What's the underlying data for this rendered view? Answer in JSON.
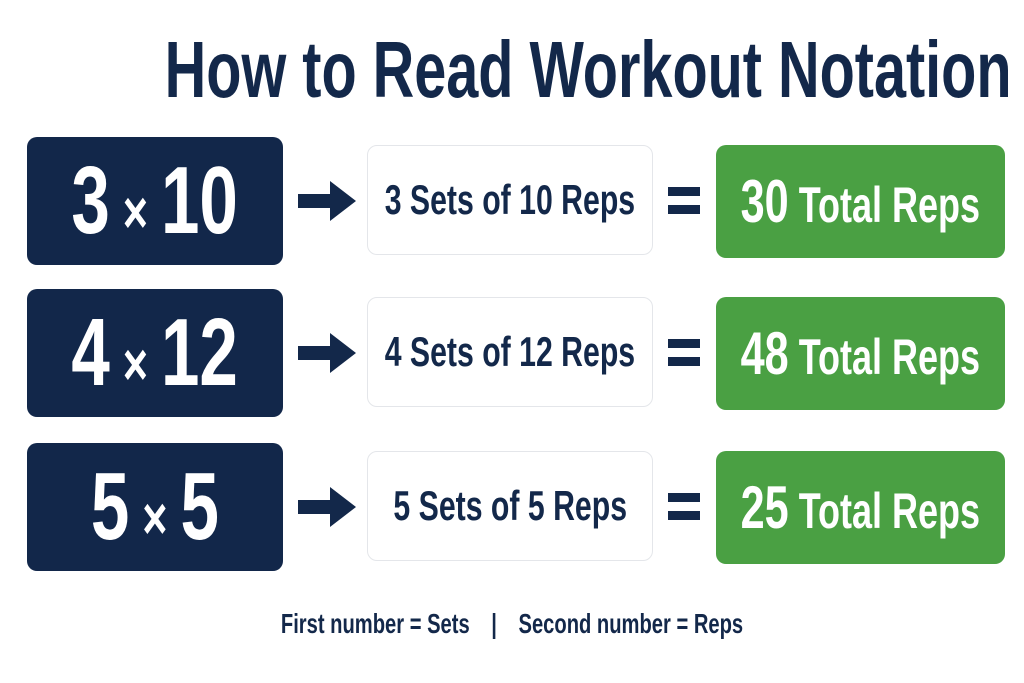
{
  "title": "How to Read Workout Notation",
  "rows": [
    {
      "sets": "3",
      "times": "×",
      "reps": "10",
      "description": "3 Sets of 10 Reps",
      "equals": "=",
      "total_number": "30",
      "total_label": "Total Reps"
    },
    {
      "sets": "4",
      "times": "×",
      "reps": "12",
      "description": "4 Sets of 12 Reps",
      "equals": "=",
      "total_number": "48",
      "total_label": "Total Reps"
    },
    {
      "sets": "5",
      "times": "×",
      "reps": "5",
      "description": "5 Sets of 5 Reps",
      "equals": "=",
      "total_number": "25",
      "total_label": "Total Reps"
    }
  ],
  "footer": {
    "left": "First number = Sets",
    "separator": "|",
    "right": "Second number = Reps"
  },
  "colors": {
    "navy": "#12274a",
    "green": "#4aa043",
    "border": "#e4e6ea"
  },
  "icons": [
    "arrow-right-icon",
    "equals-icon"
  ]
}
